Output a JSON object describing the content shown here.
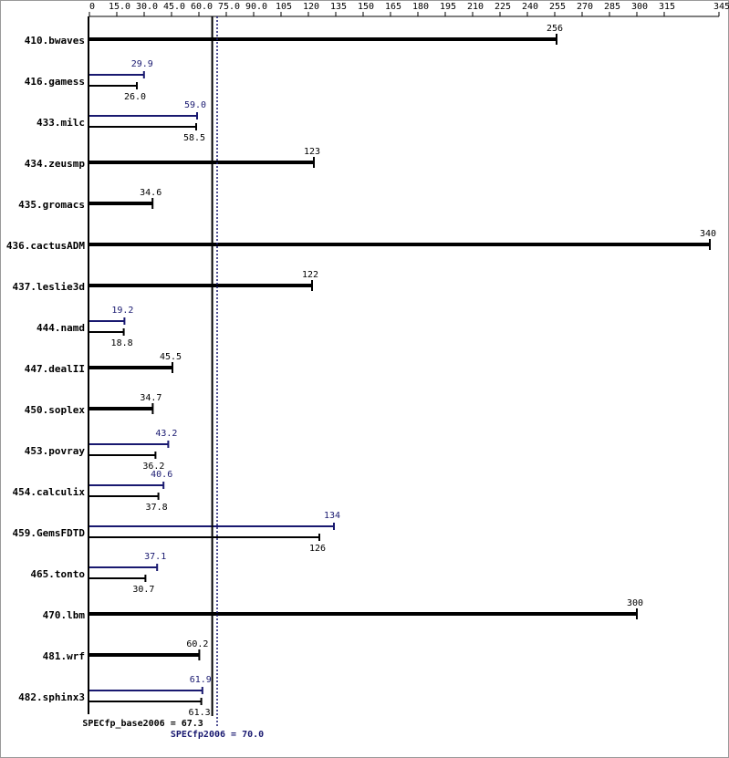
{
  "chart_data": {
    "type": "bar",
    "orientation": "horizontal",
    "categories": [
      "410.bwaves",
      "416.gamess",
      "433.milc",
      "434.zeusmp",
      "435.gromacs",
      "436.cactusADM",
      "437.leslie3d",
      "444.namd",
      "447.dealII",
      "450.soplex",
      "453.povray",
      "454.calculix",
      "459.GemsFDTD",
      "465.tonto",
      "470.lbm",
      "481.wrf",
      "482.sphinx3"
    ],
    "series": [
      {
        "color": "#000000",
        "values": [
          256,
          26.0,
          58.5,
          123,
          34.6,
          340,
          122,
          18.8,
          45.5,
          34.7,
          36.2,
          37.8,
          126,
          30.7,
          300,
          60.2,
          61.3
        ],
        "value_labels": [
          "256",
          "26.0",
          "58.5",
          "123",
          "34.6",
          "340",
          "122",
          "18.8",
          "45.5",
          "34.7",
          "36.2",
          "37.8",
          "126",
          "30.7",
          "300",
          "60.2",
          "61.3"
        ]
      },
      {
        "color": "#191970",
        "values": [
          null,
          29.9,
          59.0,
          null,
          null,
          null,
          null,
          19.2,
          null,
          null,
          43.2,
          40.6,
          134,
          37.1,
          null,
          null,
          61.9
        ],
        "value_labels": [
          null,
          "29.9",
          "59.0",
          null,
          null,
          null,
          null,
          "19.2",
          null,
          null,
          "43.2",
          "40.6",
          "134",
          "37.1",
          null,
          null,
          "61.9"
        ]
      }
    ],
    "xlim": [
      0,
      345
    ],
    "xticks": [
      0,
      {
        "value": 15,
        "label": "15.0"
      },
      {
        "value": 30,
        "label": "30.0"
      },
      {
        "value": 45,
        "label": "45.0"
      },
      {
        "value": 60,
        "label": "60.0"
      },
      {
        "value": 75,
        "label": "75.0"
      },
      {
        "value": 90,
        "label": "90.0"
      },
      105,
      120,
      135,
      150,
      165,
      180,
      195,
      210,
      225,
      240,
      255,
      270,
      285,
      300,
      315,
      345
    ],
    "reference_lines": [
      {
        "label": "SPECfp_base2006 = 67.3",
        "value": 67.3,
        "color": "#000000",
        "style": "solid"
      },
      {
        "label": "SPECfp2006 = 70.0",
        "value": 70.0,
        "color": "#191970",
        "style": "dotted"
      }
    ]
  }
}
